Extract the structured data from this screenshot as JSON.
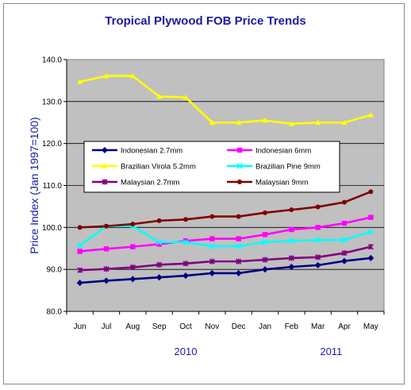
{
  "chart_data": {
    "type": "line",
    "title": "Tropical Plywood FOB Price Trends",
    "ylabel": "Price Index (Jan 1997=100)",
    "xlabel": "",
    "categories": [
      "Jun",
      "Jul",
      "Aug",
      "Sep",
      "Oct",
      "Nov",
      "Dec",
      "Jan",
      "Feb",
      "Mar",
      "Apr",
      "May"
    ],
    "year_labels": [
      {
        "label": "2010",
        "at_category": 4
      },
      {
        "label": "2011",
        "at_category": 9.5
      }
    ],
    "ylim": [
      80,
      140
    ],
    "yticks": [
      "80.0",
      "90.0",
      "100.0",
      "110.0",
      "120.0",
      "130.0",
      "140.0"
    ],
    "grid": true,
    "legend_position": "center-left",
    "series": [
      {
        "name": "Indonesian 2.7mm",
        "color": "#000080",
        "marker": "diamond",
        "values": [
          86.8,
          87.3,
          87.7,
          88.1,
          88.5,
          89.1,
          89.1,
          90.0,
          90.6,
          91.0,
          92.0,
          92.7
        ]
      },
      {
        "name": "Indonesian 6mm",
        "color": "#ff00ff",
        "marker": "square",
        "values": [
          94.3,
          94.9,
          95.4,
          96.0,
          96.8,
          97.3,
          97.3,
          98.3,
          99.5,
          100.0,
          101.0,
          102.4
        ]
      },
      {
        "name": "Brazilian Virola 5.2mm",
        "color": "#ffff00",
        "marker": "triangle",
        "values": [
          134.7,
          136.1,
          136.1,
          131.2,
          131.0,
          125.0,
          125.0,
          125.5,
          124.7,
          125.0,
          125.0,
          126.8
        ]
      },
      {
        "name": "Brazilian Pine 9mm",
        "color": "#00ffff",
        "marker": "x",
        "values": [
          95.7,
          100.3,
          100.3,
          96.5,
          96.5,
          95.5,
          95.5,
          96.5,
          96.8,
          97.0,
          97.0,
          99.0
        ]
      },
      {
        "name": "Malaysian 2.7mm",
        "color": "#800080",
        "marker": "star",
        "values": [
          89.8,
          90.1,
          90.5,
          91.1,
          91.4,
          91.9,
          91.9,
          92.3,
          92.7,
          92.9,
          93.9,
          95.4
        ]
      },
      {
        "name": "Malaysian 9mm",
        "color": "#800000",
        "marker": "circle",
        "values": [
          100.0,
          100.3,
          100.8,
          101.6,
          101.9,
          102.6,
          102.6,
          103.5,
          104.2,
          104.9,
          106.0,
          108.5
        ]
      }
    ]
  }
}
